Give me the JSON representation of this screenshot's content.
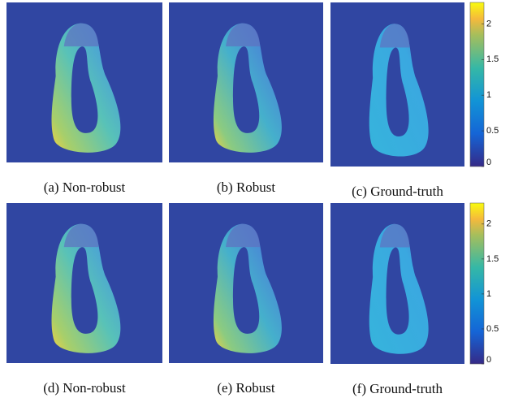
{
  "panels": [
    {
      "caption": "(a) Non-robust"
    },
    {
      "caption": "(b) Robust"
    },
    {
      "caption": "(c) Ground-truth"
    },
    {
      "caption": "(d) Non-robust"
    },
    {
      "caption": "(e) Robust"
    },
    {
      "caption": "(f) Ground-truth"
    }
  ],
  "colorbars": [
    {
      "ylim": [
        0,
        2.3
      ],
      "yticks": [
        0,
        0.5,
        1,
        1.5,
        2
      ]
    },
    {
      "ylim": [
        0,
        2.3
      ],
      "yticks": [
        0,
        0.5,
        1,
        1.5,
        2
      ]
    }
  ]
}
